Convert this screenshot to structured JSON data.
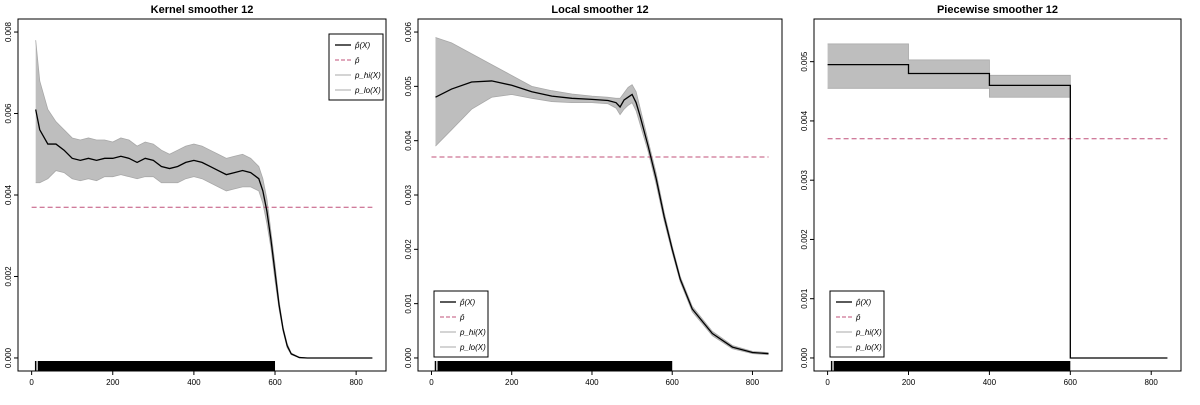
{
  "chart_data": [
    {
      "type": "line",
      "title": "Kernel smoother 12",
      "xlim": [
        0,
        840
      ],
      "ylim": [
        0,
        0.008
      ],
      "x_ticks": [
        0,
        200,
        400,
        600,
        800
      ],
      "y_ticks": [
        0,
        0.002,
        0.004,
        0.006,
        0.008
      ],
      "y_tick_labels": [
        "0.000",
        "0.002",
        "0.004",
        "0.006",
        "0.008"
      ],
      "legend_position": "top-right",
      "legend": [
        "p̂(X)",
        "p̄",
        "p_hi(X)",
        "p_lo(X)"
      ],
      "series": [
        {
          "name": "p̂(X)",
          "x": [
            10,
            20,
            40,
            60,
            80,
            100,
            120,
            140,
            160,
            180,
            200,
            220,
            240,
            260,
            280,
            300,
            320,
            340,
            360,
            380,
            400,
            420,
            440,
            460,
            480,
            500,
            520,
            540,
            560,
            570,
            580,
            590,
            600,
            610,
            620,
            630,
            640,
            660,
            680,
            700,
            840
          ],
          "y": [
            0.0061,
            0.0056,
            0.00525,
            0.00525,
            0.0051,
            0.0049,
            0.00485,
            0.0049,
            0.00485,
            0.0049,
            0.0049,
            0.00495,
            0.0049,
            0.0048,
            0.0049,
            0.00485,
            0.0047,
            0.00465,
            0.0047,
            0.0048,
            0.00485,
            0.0048,
            0.0047,
            0.0046,
            0.0045,
            0.00455,
            0.0046,
            0.00455,
            0.0044,
            0.0041,
            0.0036,
            0.0029,
            0.0021,
            0.0013,
            0.0007,
            0.0003,
            0.0001,
            1e-05,
            0,
            0,
            0
          ]
        },
        {
          "name": "p_hi(X)",
          "x": [
            10,
            20,
            40,
            60,
            80,
            100,
            120,
            140,
            160,
            180,
            200,
            220,
            240,
            260,
            280,
            300,
            320,
            340,
            360,
            380,
            400,
            420,
            440,
            460,
            480,
            500,
            520,
            540,
            560,
            570,
            580,
            590,
            600,
            610,
            620,
            630,
            640,
            660,
            680,
            700,
            840
          ],
          "y": [
            0.0078,
            0.0068,
            0.0061,
            0.0058,
            0.0056,
            0.0054,
            0.00535,
            0.0054,
            0.00535,
            0.00535,
            0.0053,
            0.0054,
            0.00535,
            0.0052,
            0.0053,
            0.00525,
            0.0051,
            0.005,
            0.0051,
            0.0052,
            0.00525,
            0.0052,
            0.0051,
            0.005,
            0.0049,
            0.00495,
            0.005,
            0.0049,
            0.0047,
            0.0044,
            0.0039,
            0.0031,
            0.0023,
            0.0014,
            0.00075,
            0.00035,
            0.00012,
            2e-05,
            0,
            0,
            0
          ]
        },
        {
          "name": "p_lo(X)",
          "x": [
            10,
            20,
            40,
            60,
            80,
            100,
            120,
            140,
            160,
            180,
            200,
            220,
            240,
            260,
            280,
            300,
            320,
            340,
            360,
            380,
            400,
            420,
            440,
            460,
            480,
            500,
            520,
            540,
            560,
            570,
            580,
            590,
            600,
            610,
            620,
            630,
            640,
            660,
            680,
            700,
            840
          ],
          "y": [
            0.0043,
            0.0043,
            0.0044,
            0.0046,
            0.00455,
            0.0044,
            0.00435,
            0.0044,
            0.00435,
            0.00445,
            0.00445,
            0.0045,
            0.00445,
            0.0044,
            0.00445,
            0.00445,
            0.0043,
            0.0043,
            0.0043,
            0.0044,
            0.00445,
            0.0044,
            0.0043,
            0.0042,
            0.0041,
            0.00415,
            0.0042,
            0.0042,
            0.0041,
            0.0038,
            0.0033,
            0.0027,
            0.0019,
            0.0012,
            0.00065,
            0.00025,
            8e-05,
            1e-05,
            0,
            0,
            0
          ]
        },
        {
          "name": "p̄",
          "x": [
            0,
            840
          ],
          "y": [
            0.0037,
            0.0037
          ]
        }
      ],
      "rug_x": [
        10,
        15,
        600
      ]
    },
    {
      "type": "line",
      "title": "Local smoother 12",
      "xlim": [
        0,
        840
      ],
      "ylim": [
        0,
        0.006
      ],
      "x_ticks": [
        0,
        200,
        400,
        600,
        800
      ],
      "y_ticks": [
        0,
        0.001,
        0.002,
        0.003,
        0.004,
        0.005,
        0.006
      ],
      "y_tick_labels": [
        "0.000",
        "0.001",
        "0.002",
        "0.003",
        "0.004",
        "0.005",
        "0.006"
      ],
      "legend_position": "bottom-left",
      "legend": [
        "p̂(X)",
        "p̄",
        "p_hi(X)",
        "p_lo(X)"
      ],
      "series": [
        {
          "name": "p̂(X)",
          "x": [
            10,
            50,
            100,
            150,
            200,
            250,
            300,
            350,
            400,
            440,
            460,
            470,
            480,
            490,
            500,
            510,
            520,
            540,
            560,
            580,
            600,
            620,
            650,
            700,
            750,
            800,
            840
          ],
          "y": [
            0.0048,
            0.00495,
            0.00508,
            0.0051,
            0.00502,
            0.0049,
            0.00482,
            0.00478,
            0.00476,
            0.00474,
            0.0047,
            0.00462,
            0.00475,
            0.0048,
            0.00485,
            0.0047,
            0.00445,
            0.0039,
            0.0033,
            0.0026,
            0.002,
            0.00145,
            0.0009,
            0.00045,
            0.0002,
            0.0001,
            8e-05
          ]
        },
        {
          "name": "p_hi(X)",
          "x": [
            10,
            50,
            100,
            150,
            200,
            250,
            300,
            350,
            400,
            440,
            460,
            470,
            480,
            490,
            500,
            510,
            520,
            540,
            560,
            580,
            600,
            620,
            650,
            700,
            750,
            800,
            840
          ],
          "y": [
            0.0059,
            0.0058,
            0.0056,
            0.0054,
            0.0052,
            0.005,
            0.00492,
            0.00486,
            0.00482,
            0.0048,
            0.00478,
            0.00478,
            0.00488,
            0.00498,
            0.00503,
            0.0049,
            0.0046,
            0.004,
            0.0034,
            0.00268,
            0.00206,
            0.0015,
            0.00095,
            0.00049,
            0.00023,
            0.00012,
            0.0001
          ]
        },
        {
          "name": "p_lo(X)",
          "x": [
            10,
            50,
            100,
            150,
            200,
            250,
            300,
            350,
            400,
            440,
            460,
            470,
            480,
            490,
            500,
            510,
            520,
            540,
            560,
            580,
            600,
            620,
            650,
            700,
            750,
            800,
            840
          ],
          "y": [
            0.0039,
            0.0042,
            0.00458,
            0.0048,
            0.00485,
            0.00478,
            0.00472,
            0.0047,
            0.0047,
            0.00468,
            0.0046,
            0.00448,
            0.00458,
            0.00465,
            0.0047,
            0.00455,
            0.0043,
            0.0038,
            0.0032,
            0.00252,
            0.00194,
            0.0014,
            0.00085,
            0.00041,
            0.00017,
            8e-05,
            6e-05
          ]
        },
        {
          "name": "p̄",
          "x": [
            0,
            840
          ],
          "y": [
            0.0037,
            0.0037
          ]
        }
      ],
      "rug_x": [
        10,
        15,
        600
      ]
    },
    {
      "type": "line",
      "title": "Piecewise smoother 12",
      "xlim": [
        0,
        840
      ],
      "ylim": [
        0,
        0.0055
      ],
      "x_ticks": [
        0,
        200,
        400,
        600,
        800
      ],
      "y_ticks": [
        0,
        0.001,
        0.002,
        0.003,
        0.004,
        0.005
      ],
      "y_tick_labels": [
        "0.000",
        "0.001",
        "0.002",
        "0.003",
        "0.004",
        "0.005"
      ],
      "legend_position": "bottom-left",
      "legend": [
        "p̂(X)",
        "p̄",
        "p_hi(X)",
        "p_lo(X)"
      ],
      "series": [
        {
          "name": "p̂(X)",
          "x": [
            0,
            200,
            200,
            400,
            400,
            600,
            600,
            840
          ],
          "y": [
            0.00495,
            0.00495,
            0.0048,
            0.0048,
            0.0046,
            0.0046,
            0,
            0
          ]
        },
        {
          "name": "p_hi(X)",
          "x": [
            0,
            200,
            200,
            400,
            400,
            600,
            600,
            840
          ],
          "y": [
            0.0053,
            0.0053,
            0.00503,
            0.00503,
            0.00477,
            0.00477,
            0,
            0
          ]
        },
        {
          "name": "p_lo(X)",
          "x": [
            0,
            200,
            200,
            400,
            400,
            600,
            600,
            840
          ],
          "y": [
            0.00455,
            0.00455,
            0.00455,
            0.00455,
            0.0044,
            0.0044,
            0,
            0
          ]
        },
        {
          "name": "p̄",
          "x": [
            0,
            840
          ],
          "y": [
            0.0037,
            0.0037
          ]
        }
      ],
      "rug_x": [
        10,
        15,
        600
      ]
    }
  ],
  "colors": {
    "estimate": "#000000",
    "mean": "#c0507a",
    "band": "#bebebe",
    "axis": "#000000"
  }
}
